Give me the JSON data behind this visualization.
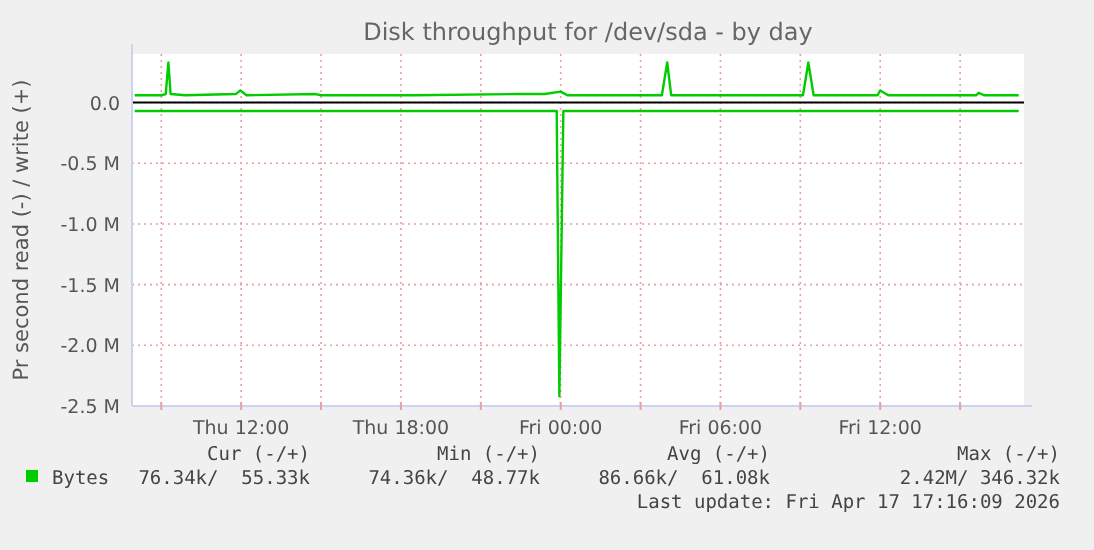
{
  "chart_data": {
    "type": "line",
    "title": "Disk throughput for /dev/sda - by day",
    "ylabel": "Pr second read (-) / write (+)",
    "xlim": [
      "2026-04-16T07:54",
      "2026-04-17T17:24"
    ],
    "ylim": [
      -2.5,
      0.4
    ],
    "xticks": [
      {
        "value": "2026-04-16T09:00",
        "label": null
      },
      {
        "value": "2026-04-16T12:00",
        "label": "Thu 12:00"
      },
      {
        "value": "2026-04-16T15:00",
        "label": null
      },
      {
        "value": "2026-04-16T18:00",
        "label": "Thu 18:00"
      },
      {
        "value": "2026-04-16T21:00",
        "label": null
      },
      {
        "value": "2026-04-17T00:00",
        "label": "Fri 00:00"
      },
      {
        "value": "2026-04-17T03:00",
        "label": null
      },
      {
        "value": "2026-04-17T06:00",
        "label": "Fri 06:00"
      },
      {
        "value": "2026-04-17T09:00",
        "label": null
      },
      {
        "value": "2026-04-17T12:00",
        "label": "Fri 12:00"
      },
      {
        "value": "2026-04-17T15:00",
        "label": null
      }
    ],
    "yticks": [
      {
        "value": -2.5,
        "label": "-2.5 M"
      },
      {
        "value": -2.0,
        "label": "-2.0 M"
      },
      {
        "value": -1.5,
        "label": "-1.5 M"
      },
      {
        "value": -1.0,
        "label": "-1.0 M"
      },
      {
        "value": -0.5,
        "label": "-0.5 M"
      },
      {
        "value": 0,
        "label": "0.0"
      }
    ],
    "grid": true,
    "legend": "bottom",
    "ref_lines": [
      {
        "axis": "y",
        "value": 0,
        "color": "#000000"
      }
    ],
    "series": [
      {
        "name": "Bytes",
        "color": "#00cc00",
        "x": [
          "2026-04-16T08:00",
          "2026-04-16T23:51",
          "2026-04-16T23:57",
          "2026-04-17T00:06",
          "2026-04-17T17:12"
        ],
        "values": [
          -0.07,
          -0.07,
          -2.42,
          -0.07,
          -0.07
        ]
      },
      {
        "color": "#00cc00",
        "x": [
          "2026-04-16T08:00",
          "2026-04-16T09:00",
          "2026-04-16T09:10",
          "2026-04-16T09:16",
          "2026-04-16T09:21",
          "2026-04-16T09:54",
          "2026-04-16T11:48",
          "2026-04-16T11:58",
          "2026-04-16T12:12",
          "2026-04-16T14:48",
          "2026-04-16T15:00",
          "2026-04-16T18:30",
          "2026-04-16T22:24",
          "2026-04-16T23:24",
          "2026-04-17T00:00",
          "2026-04-17T00:15",
          "2026-04-17T03:48",
          "2026-04-17T04:00",
          "2026-04-17T04:09",
          "2026-04-17T09:06",
          "2026-04-17T09:18",
          "2026-04-17T09:30",
          "2026-04-17T11:54",
          "2026-04-17T12:00",
          "2026-04-17T12:18",
          "2026-04-17T15:36",
          "2026-04-17T15:42",
          "2026-04-17T15:54",
          "2026-04-17T17:12"
        ],
        "values": [
          0.06,
          0.06,
          0.07,
          0.33,
          0.07,
          0.06,
          0.07,
          0.1,
          0.06,
          0.07,
          0.06,
          0.06,
          0.07,
          0.07,
          0.09,
          0.06,
          0.06,
          0.33,
          0.06,
          0.06,
          0.33,
          0.06,
          0.06,
          0.1,
          0.06,
          0.06,
          0.08,
          0.06,
          0.06
        ]
      }
    ],
    "annotations": [
      "Cur (-/+)",
      "Min (-/+)",
      "Avg (-/+)",
      "Max (-/+)",
      "76.34k/  55.33k",
      "74.36k/  48.77k",
      "86.66k/  61.08k",
      "2.42M/ 346.32k",
      "Last update: Fri Apr 17 17:16:09 2026"
    ]
  }
}
